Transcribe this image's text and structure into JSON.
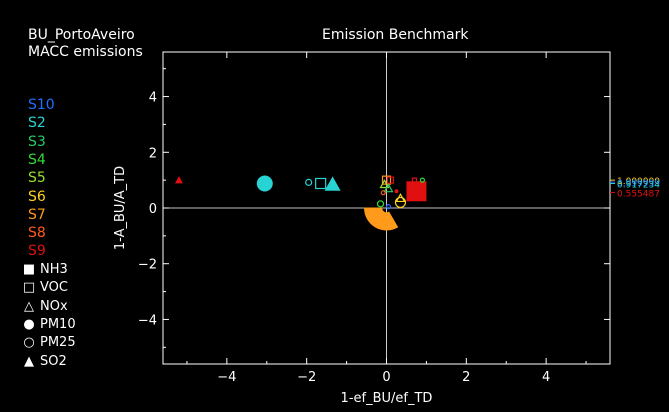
{
  "header": {
    "left_line1": "BU_PortoAveiro",
    "left_line2": "MACC emissions",
    "title": "Emission Benchmark"
  },
  "sector_legend": [
    {
      "label": "S10",
      "color": "#1f6fff"
    },
    {
      "label": "S2",
      "color": "#27d3d3"
    },
    {
      "label": "S3",
      "color": "#22cc66"
    },
    {
      "label": "S4",
      "color": "#33dd33"
    },
    {
      "label": "S5",
      "color": "#99e02a"
    },
    {
      "label": "S6",
      "color": "#ffd21f"
    },
    {
      "label": "S7",
      "color": "#ff9a1a"
    },
    {
      "label": "S8",
      "color": "#ff5a1a"
    },
    {
      "label": "S9",
      "color": "#e01010"
    }
  ],
  "marker_legend": [
    {
      "label": "NH3",
      "symbol": "■"
    },
    {
      "label": "VOC",
      "symbol": "□"
    },
    {
      "label": "NOx",
      "symbol": "△"
    },
    {
      "label": "PM10",
      "symbol": "●"
    },
    {
      "label": "PM25",
      "symbol": "○"
    },
    {
      "label": "SO2",
      "symbol": "▲"
    }
  ],
  "chart_data": {
    "type": "scatter",
    "title": "Emission Benchmark",
    "xlabel": "1-ef_BU/ef_TD",
    "ylabel": "1-A_BU/A_TD",
    "xlim": [
      -5.6,
      5.6
    ],
    "ylim": [
      -5.6,
      5.6
    ],
    "xticks": [
      -4,
      -2,
      0,
      2,
      4
    ],
    "yticks": [
      -4,
      -2,
      0,
      2,
      4
    ],
    "points": [
      {
        "x": -5.2,
        "y": 1.0,
        "marker": "triangle-filled",
        "color": "#e01010",
        "size": 4
      },
      {
        "x": -3.05,
        "y": 0.88,
        "marker": "circle-filled",
        "color": "#27d3d3",
        "size": 8
      },
      {
        "x": -1.95,
        "y": 0.92,
        "marker": "circle-open",
        "color": "#27d3d3",
        "size": 3
      },
      {
        "x": -1.65,
        "y": 0.88,
        "marker": "square-open",
        "color": "#27d3d3",
        "size": 5
      },
      {
        "x": -1.35,
        "y": 0.85,
        "marker": "triangle-filled",
        "color": "#27d3d3",
        "size": 8
      },
      {
        "x": 0.0,
        "y": 1.0,
        "marker": "square-open",
        "color": "#ff9a1a",
        "size": 4
      },
      {
        "x": 0.1,
        "y": 1.0,
        "marker": "square-open",
        "color": "#e01010",
        "size": 3
      },
      {
        "x": -0.05,
        "y": 0.85,
        "marker": "triangle-open",
        "color": "#99e02a",
        "size": 4
      },
      {
        "x": 0.05,
        "y": 0.7,
        "marker": "triangle-open",
        "color": "#22cc66",
        "size": 4
      },
      {
        "x": -0.08,
        "y": 0.55,
        "marker": "circle-open",
        "color": "#ff5a1a",
        "size": 2
      },
      {
        "x": 0.25,
        "y": 0.6,
        "marker": "circle-filled",
        "color": "#e01010",
        "size": 2
      },
      {
        "x": 0.35,
        "y": 0.35,
        "marker": "triangle-open",
        "color": "#ffd21f",
        "size": 4
      },
      {
        "x": -0.15,
        "y": 0.15,
        "marker": "circle-open",
        "color": "#33dd33",
        "size": 3
      },
      {
        "x": 0.05,
        "y": 0.05,
        "marker": "circle-open",
        "color": "#1f6fff",
        "size": 2
      },
      {
        "x": 0.35,
        "y": 0.2,
        "marker": "circle-open",
        "color": "#ffd21f",
        "size": 5
      },
      {
        "x": 0.75,
        "y": 0.6,
        "marker": "square-filled",
        "color": "#e01010",
        "size": 10
      },
      {
        "x": 0.7,
        "y": 1.0,
        "marker": "square-open",
        "color": "#e01010",
        "size": 2
      },
      {
        "x": 0.9,
        "y": 1.0,
        "marker": "circle-open",
        "color": "#33dd33",
        "size": 2
      }
    ],
    "wedge": {
      "color": "#ff9a1a",
      "center": [
        0.0,
        0.0
      ],
      "r_inner": 0.12,
      "r_outer": 0.55,
      "theta_deg": [
        180,
        300
      ]
    },
    "right_labels": [
      {
        "text": "1.000000",
        "y": 1.0,
        "color": "#ffd21f"
      },
      {
        "text": "0.999999",
        "y": 0.93,
        "color": "#1f6fff"
      },
      {
        "text": "0.917234",
        "y": 0.88,
        "color": "#27d3d3"
      },
      {
        "text": "0.555487",
        "y": 0.56,
        "color": "#e01010"
      }
    ]
  }
}
